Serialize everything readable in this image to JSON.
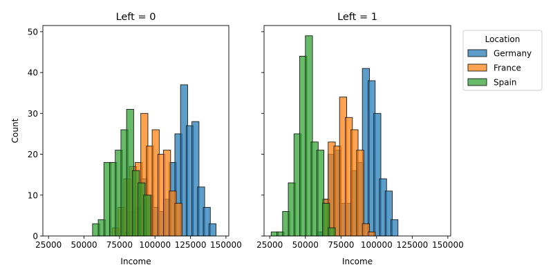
{
  "chart_data": {
    "type": "histogram",
    "layout": "facet-columns",
    "shared_y": true,
    "xlim": [
      21000,
      152000
    ],
    "ylim": [
      0,
      51.5
    ],
    "xticks": [
      25000,
      50000,
      75000,
      100000,
      125000,
      150000
    ],
    "xtick_labels": [
      "25000",
      "50000",
      "75000",
      "100000",
      "125000",
      "150000"
    ],
    "yticks": [
      0,
      10,
      20,
      30,
      40,
      50
    ],
    "ytick_labels": [
      "0",
      "10",
      "20",
      "30",
      "40",
      "50"
    ],
    "xlabel": "Income",
    "ylabel": "Count",
    "bin_width": 5000,
    "legend": {
      "title": "Location",
      "position": "outside-upper-right",
      "entries": [
        "Germany",
        "France",
        "Spain"
      ]
    },
    "colors": {
      "Germany": "#1f77b4",
      "France": "#ff7f0e",
      "Spain": "#2ca02c"
    },
    "draw_order": [
      "Germany",
      "France",
      "Spain"
    ],
    "panels": [
      {
        "title": "Left = 0",
        "series": [
          {
            "name": "Germany",
            "bins": [
              [
                78000,
                1
              ],
              [
                82000,
                6
              ],
              [
                86000,
                7
              ],
              [
                90000,
                14
              ],
              [
                94000,
                10
              ],
              [
                98000,
                7
              ],
              [
                102000,
                6
              ],
              [
                106000,
                9
              ],
              [
                110000,
                18
              ],
              [
                114000,
                25
              ],
              [
                118000,
                37
              ],
              [
                122000,
                27
              ],
              [
                126000,
                28
              ],
              [
                130000,
                12
              ],
              [
                134000,
                7
              ],
              [
                138000,
                3
              ]
            ]
          },
          {
            "name": "France",
            "bins": [
              [
                70000,
                2
              ],
              [
                74000,
                7
              ],
              [
                78000,
                14
              ],
              [
                82000,
                17
              ],
              [
                86000,
                18
              ],
              [
                90000,
                30
              ],
              [
                94000,
                22
              ],
              [
                98000,
                26
              ],
              [
                102000,
                20
              ],
              [
                106000,
                21
              ],
              [
                110000,
                11
              ],
              [
                114000,
                8
              ]
            ]
          },
          {
            "name": "Spain",
            "bins": [
              [
                56000,
                3
              ],
              [
                60000,
                4
              ],
              [
                64000,
                18
              ],
              [
                68000,
                18
              ],
              [
                72000,
                21
              ],
              [
                76000,
                26
              ],
              [
                80000,
                31
              ],
              [
                84000,
                16
              ],
              [
                88000,
                13
              ],
              [
                92000,
                10
              ]
            ]
          }
        ]
      },
      {
        "title": "Left = 1",
        "series": [
          {
            "name": "Germany",
            "bins": [
              [
                58000,
                1
              ],
              [
                62000,
                9
              ],
              [
                66000,
                20
              ],
              [
                70000,
                21
              ],
              [
                74000,
                8
              ],
              [
                78000,
                8
              ],
              [
                82000,
                16
              ],
              [
                86000,
                18
              ],
              [
                90000,
                41
              ],
              [
                94000,
                38
              ],
              [
                98000,
                30
              ],
              [
                102000,
                14
              ],
              [
                106000,
                11
              ],
              [
                110000,
                4
              ]
            ]
          },
          {
            "name": "France",
            "bins": [
              [
                62000,
                9
              ],
              [
                66000,
                23
              ],
              [
                70000,
                22
              ],
              [
                74000,
                34
              ],
              [
                78000,
                29
              ],
              [
                82000,
                26
              ],
              [
                86000,
                21
              ],
              [
                90000,
                3
              ],
              [
                94000,
                1
              ]
            ]
          },
          {
            "name": "Spain",
            "bins": [
              [
                26000,
                1
              ],
              [
                30000,
                1
              ],
              [
                34000,
                6
              ],
              [
                38000,
                13
              ],
              [
                42000,
                25
              ],
              [
                46000,
                44
              ],
              [
                50000,
                49
              ],
              [
                54000,
                23
              ],
              [
                58000,
                21
              ],
              [
                62000,
                8
              ],
              [
                66000,
                2
              ]
            ]
          }
        ]
      }
    ]
  }
}
